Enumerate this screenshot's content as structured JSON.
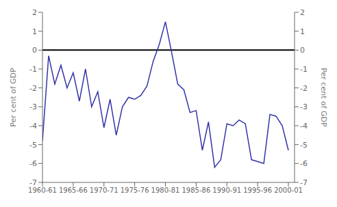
{
  "chart_data": {
    "type": "line",
    "ylabel": "Per cent of GDP",
    "y2label": "Per cent of GDP",
    "x": [
      1960,
      1961,
      1962,
      1963,
      1964,
      1965,
      1966,
      1967,
      1968,
      1969,
      1970,
      1971,
      1972,
      1973,
      1974,
      1975,
      1976,
      1977,
      1978,
      1979,
      1980,
      1981,
      1982,
      1983,
      1984,
      1985,
      1986,
      1987,
      1988,
      1989,
      1990,
      1991,
      1992,
      1993,
      1994,
      1995,
      1996,
      1997,
      1998,
      1999,
      2000
    ],
    "values": [
      -4.8,
      -0.3,
      -1.8,
      -0.8,
      -2.0,
      -1.2,
      -2.7,
      -1.0,
      -3.0,
      -2.2,
      -4.1,
      -2.6,
      -4.5,
      -3.0,
      -2.5,
      -2.6,
      -2.4,
      -1.9,
      -0.6,
      0.3,
      1.5,
      -0.1,
      -1.8,
      -2.1,
      -3.3,
      -3.2,
      -5.3,
      -3.8,
      -6.2,
      -5.8,
      -3.9,
      -4.0,
      -3.7,
      -3.9,
      -5.8,
      -5.9,
      -6.0,
      -3.4,
      -3.5,
      -4.0,
      -5.3
    ],
    "color": "#3333aa",
    "xlim": [
      1960,
      2001
    ],
    "xticks": [
      {
        "value": 1960,
        "label": "1960-61"
      },
      {
        "value": 1965,
        "label": "1965-66"
      },
      {
        "value": 1970,
        "label": "1970-71"
      },
      {
        "value": 1975,
        "label": "1975-76"
      },
      {
        "value": 1980,
        "label": "1980-81"
      },
      {
        "value": 1985,
        "label": "1985-86"
      },
      {
        "value": 1990,
        "label": "1990-91"
      },
      {
        "value": 1995,
        "label": "1995-96"
      },
      {
        "value": 2000,
        "label": "2000-01"
      }
    ],
    "ylim": [
      -7,
      2
    ],
    "yticks": [
      -7,
      -6,
      -5,
      -4,
      -3,
      -2,
      -1,
      0,
      1,
      2
    ],
    "y2lim": [
      -7,
      2
    ],
    "y2ticks": [
      -7,
      -6,
      -5,
      -4,
      -3,
      -2,
      -1,
      0,
      1,
      2
    ],
    "hlines": [
      {
        "y": 0,
        "color": "#000000"
      }
    ],
    "grid": false
  }
}
